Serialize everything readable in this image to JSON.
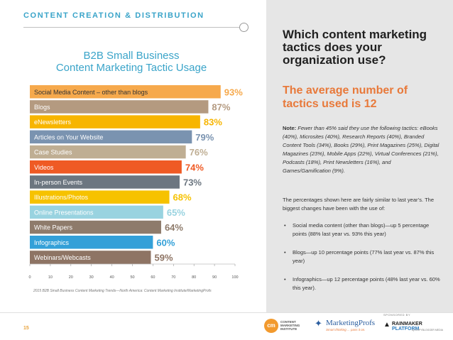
{
  "header": {
    "label": "CONTENT CREATION & DISTRIBUTION"
  },
  "chart_data": {
    "type": "bar",
    "orientation": "horizontal",
    "title_line1": "B2B Small Business",
    "title_line2": "Content Marketing Tactic Usage",
    "categories": [
      "Social Media Content – other than blogs",
      "Blogs",
      "eNewsletters",
      "Articles on Your Website",
      "Case Studies",
      "Videos",
      "In-person Events",
      "Illustrations/Photos",
      "Online Presentations",
      "White Papers",
      "Infographics",
      "Webinars/Webcasts"
    ],
    "values": [
      93,
      87,
      83,
      79,
      76,
      74,
      73,
      68,
      65,
      64,
      60,
      59
    ],
    "value_labels": [
      "93%",
      "87%",
      "83%",
      "79%",
      "76%",
      "74%",
      "73%",
      "68%",
      "65%",
      "64%",
      "60%",
      "59%"
    ],
    "colors": [
      "#f6a94c",
      "#b49a80",
      "#f7b500",
      "#7a93b0",
      "#bfae93",
      "#ef5a24",
      "#6c7680",
      "#f6c200",
      "#99d3e0",
      "#8e7b6b",
      "#33a0d8",
      "#8e7464"
    ],
    "xlim": [
      0,
      100
    ],
    "xticks": [
      "0",
      "10",
      "20",
      "30",
      "40",
      "50",
      "60",
      "70",
      "80",
      "90",
      "100"
    ],
    "source": "2015 B2B Small Business Content Marketing Trends—North America: Content Marketing Institute/MarketingProfs"
  },
  "right": {
    "question": "Which content marketing tactics does your organization use?",
    "average": "The average number of tactics used is 12",
    "note_label": "Note:",
    "note_text": " Fewer than 45% said they use the following tactics: eBooks (40%), Microsites (40%), Research Reports (40%), Branded Content Tools (34%), Books (29%), Print Magazines (25%), Digital Magazines (23%), Mobile Apps (22%), Virtual Conferences (21%), Podcasts (18%), Print Newsletters (16%), and Games/Gamification (9%).",
    "intro": "The percentages shown here are fairly similar to last year’s. The biggest changes have been with the use of:",
    "bullets": [
      "Social media content (other than blogs)—up 5 percentage points (88% last year vs. 93% this year)",
      "Blogs—up 10 percentage points (77% last year vs. 87% this year)",
      "Infographics—up 12 percentage points (48% last year vs. 60% this year)."
    ]
  },
  "footer": {
    "page": "15",
    "cmi_badge": "cm",
    "cmi_text": "CONTENT MARKETING INSTITUTE",
    "mp_name": "MarketingProfs",
    "mp_tag": "Smart thinking ... pass it on.",
    "sponsored": "SPONSORED BY",
    "rp_name": "RAINMAKER",
    "rp_name2": " PLATFORM",
    "rp_by": "by COPYBLOGGER MEDIA"
  }
}
